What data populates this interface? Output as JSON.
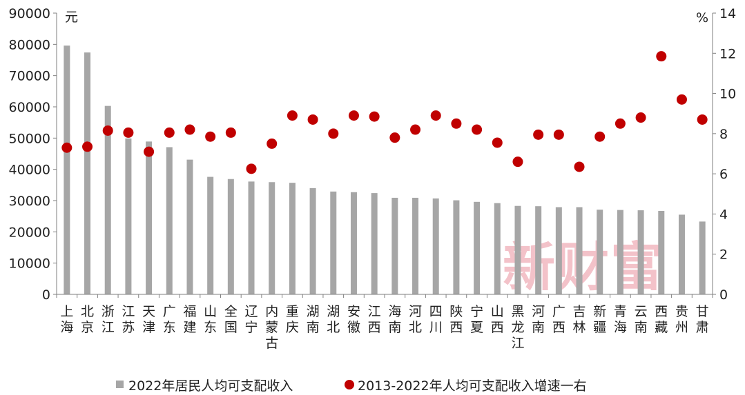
{
  "chart_data": {
    "type": "bar+scatter",
    "categories": [
      [
        "上",
        "海"
      ],
      [
        "北",
        "京"
      ],
      [
        "浙",
        "江"
      ],
      [
        "江",
        "苏"
      ],
      [
        "天",
        "津"
      ],
      [
        "广",
        "东"
      ],
      [
        "福",
        "建"
      ],
      [
        "山",
        "东"
      ],
      [
        "全",
        "国"
      ],
      [
        "辽",
        "宁"
      ],
      [
        "内",
        "蒙",
        "古"
      ],
      [
        "重",
        "庆"
      ],
      [
        "湖",
        "南"
      ],
      [
        "湖",
        "北"
      ],
      [
        "安",
        "徽"
      ],
      [
        "江",
        "西"
      ],
      [
        "海",
        "南"
      ],
      [
        "河",
        "北"
      ],
      [
        "四",
        "川"
      ],
      [
        "陕",
        "西"
      ],
      [
        "宁",
        "夏"
      ],
      [
        "山",
        "西"
      ],
      [
        "黑",
        "龙",
        "江"
      ],
      [
        "河",
        "南"
      ],
      [
        "广",
        "西"
      ],
      [
        "吉",
        "林"
      ],
      [
        "新",
        "疆"
      ],
      [
        "青",
        "海"
      ],
      [
        "云",
        "南"
      ],
      [
        "西",
        "藏"
      ],
      [
        "贵",
        "州"
      ],
      [
        "甘",
        "肃"
      ]
    ],
    "series": [
      {
        "name": "2022年居民人均可支配收入",
        "axis": "left",
        "mark": "bar",
        "color": "#a6a6a6",
        "values": [
          79600,
          77400,
          60300,
          49900,
          48900,
          47100,
          43100,
          37600,
          36900,
          36100,
          35900,
          35700,
          34000,
          32900,
          32700,
          32400,
          30900,
          30900,
          30700,
          30100,
          29600,
          29200,
          28300,
          28200,
          27900,
          27900,
          27100,
          27000,
          26900,
          26700,
          25500,
          23300
        ]
      },
      {
        "name": "2013-2022年人均可支配收入增速一右",
        "axis": "right",
        "mark": "dot",
        "color": "#c00000",
        "values": [
          7.3,
          7.35,
          8.15,
          8.05,
          7.1,
          8.05,
          8.2,
          7.85,
          8.05,
          6.25,
          7.5,
          8.9,
          8.7,
          8.0,
          8.9,
          8.85,
          7.8,
          8.2,
          8.9,
          8.5,
          8.2,
          7.55,
          6.6,
          7.95,
          7.95,
          6.35,
          7.85,
          8.5,
          8.8,
          11.85,
          9.7,
          8.7
        ]
      }
    ],
    "y_left": {
      "unit": "元",
      "min": 0,
      "max": 90000,
      "step": 10000
    },
    "y_right": {
      "unit": "%",
      "min": 0,
      "max": 14,
      "step": 2
    },
    "grid": false,
    "legend_position": "bottom",
    "watermark": "新财富"
  }
}
